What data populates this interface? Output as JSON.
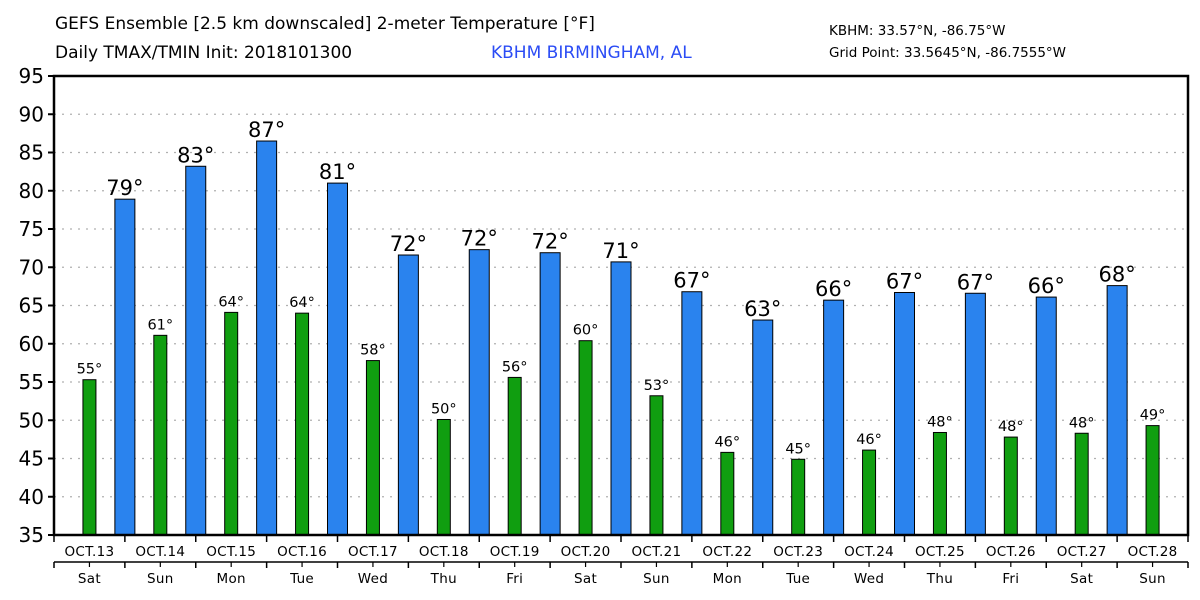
{
  "header": {
    "title_line1": "GEFS Ensemble [2.5 km downscaled] 2-meter Temperature [°F]",
    "title_line2": "Daily TMAX/TMIN Init: 2018101300",
    "station": "KBHM BIRMINGHAM, AL",
    "station_color": "#2b4cf5",
    "coord_line1": "KBHM: 33.57°N, -86.75°W",
    "coord_line2": "Grid Point: 33.5645°N, -86.7555°W"
  },
  "chart_data": {
    "type": "bar",
    "title": "GEFS Ensemble [2.5 km downscaled] 2-meter Temperature [°F] — Daily TMAX/TMIN Init: 2018101300",
    "xlabel": "",
    "ylabel": "",
    "ylim": [
      35,
      95
    ],
    "yticks": [
      35,
      40,
      45,
      50,
      55,
      60,
      65,
      70,
      75,
      80,
      85,
      90,
      95
    ],
    "grid": true,
    "legend": "none",
    "categories": [
      "OCT.13",
      "OCT.14",
      "OCT.15",
      "OCT.16",
      "OCT.17",
      "OCT.18",
      "OCT.19",
      "OCT.20",
      "OCT.21",
      "OCT.22",
      "OCT.23",
      "OCT.24",
      "OCT.25",
      "OCT.26",
      "OCT.27",
      "OCT.28"
    ],
    "weekdays": [
      "Sat",
      "Sun",
      "Mon",
      "Tue",
      "Wed",
      "Thu",
      "Fri",
      "Sat",
      "Sun",
      "Mon",
      "Tue",
      "Wed",
      "Thu",
      "Fri",
      "Sat",
      "Sun"
    ],
    "series": [
      {
        "name": "TMIN",
        "color": "#109e10",
        "values": [
          55.3,
          61.1,
          64.1,
          64.0,
          57.8,
          50.1,
          55.6,
          60.4,
          53.2,
          45.8,
          44.9,
          46.1,
          48.4,
          47.8,
          48.3,
          49.3
        ],
        "labels": [
          "55°",
          "61°",
          "64°",
          "64°",
          "58°",
          "50°",
          "56°",
          "60°",
          "53°",
          "46°",
          "45°",
          "46°",
          "48°",
          "48°",
          "48°",
          "49°"
        ]
      },
      {
        "name": "TMAX",
        "color": "#2a83ee",
        "values": [
          78.9,
          83.2,
          86.5,
          81.0,
          71.6,
          72.3,
          71.9,
          70.7,
          66.8,
          63.1,
          65.7,
          66.7,
          66.6,
          66.1,
          67.6,
          null
        ],
        "labels": [
          "79°",
          "83°",
          "87°",
          "81°",
          "72°",
          "72°",
          "72°",
          "71°",
          "67°",
          "63°",
          "66°",
          "67°",
          "67°",
          "66°",
          "68°",
          ""
        ]
      }
    ]
  }
}
